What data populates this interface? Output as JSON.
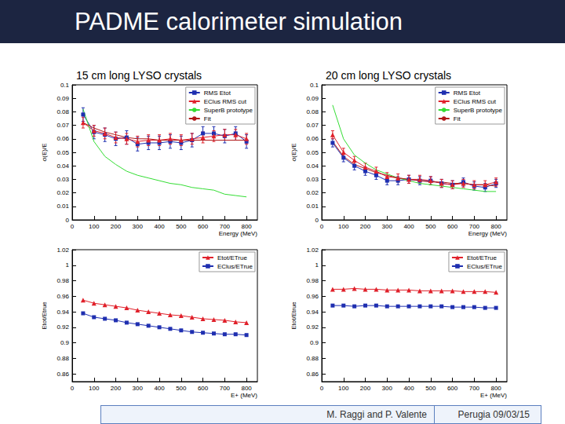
{
  "header": {
    "title": "PADME calorimeter simulation"
  },
  "footer": {
    "authors": "M. Raggi and P. Valente",
    "date": "Perugia 09/03/15"
  },
  "chart_data": [
    {
      "type": "line",
      "title": "15 cm long LYSO crystals",
      "x_label": "Energy (MeV)",
      "y_label": "σ(E)/E",
      "x": [
        50,
        100,
        150,
        200,
        250,
        300,
        350,
        400,
        450,
        500,
        550,
        600,
        650,
        700,
        750,
        800
      ],
      "xlim": [
        0,
        850
      ],
      "xticks": [
        0,
        100,
        200,
        300,
        400,
        500,
        600,
        700,
        800
      ],
      "ylim": [
        0,
        0.1
      ],
      "yticks": [
        0,
        0.01,
        0.02,
        0.03,
        0.04,
        0.05,
        0.06,
        0.07,
        0.08,
        0.09,
        0.1
      ],
      "grid": false,
      "legend": "top-right",
      "series": [
        {
          "name": "RMS Etot",
          "color": "#1f2fb0",
          "marker": "square",
          "line_style": "solid",
          "values": [
            0.078,
            0.065,
            0.063,
            0.06,
            0.061,
            0.056,
            0.057,
            0.057,
            0.058,
            0.057,
            0.059,
            0.064,
            0.064,
            0.062,
            0.064,
            0.058
          ],
          "errors": [
            0.005,
            0.005,
            0.005,
            0.005,
            0.005,
            0.005,
            0.005,
            0.005,
            0.005,
            0.005,
            0.005,
            0.005,
            0.005,
            0.005,
            0.005,
            0.005
          ]
        },
        {
          "name": "EClus RMS cut",
          "color": "#e0202a",
          "marker": "triangle",
          "line_style": "solid",
          "values": [
            0.072,
            0.066,
            0.064,
            0.061,
            0.06,
            0.058,
            0.059,
            0.059,
            0.06,
            0.059,
            0.06,
            0.061,
            0.062,
            0.063,
            0.063,
            0.06
          ],
          "errors": [
            0.004,
            0.004,
            0.004,
            0.004,
            0.004,
            0.004,
            0.004,
            0.004,
            0.004,
            0.004,
            0.004,
            0.004,
            0.004,
            0.004,
            0.004,
            0.004
          ]
        },
        {
          "name": "SuperB prototype",
          "color": "#33dd33",
          "marker": "none",
          "line_style": "solid",
          "values": [
            0.082,
            0.058,
            0.047,
            0.041,
            0.036,
            0.033,
            0.031,
            0.029,
            0.027,
            0.026,
            0.024,
            0.023,
            0.022,
            0.019,
            0.018,
            0.017
          ]
        },
        {
          "name": "Fit",
          "color": "#b01818",
          "marker": "none",
          "line_style": "solid",
          "values": [
            0.072,
            0.068,
            0.065,
            0.063,
            0.061,
            0.06,
            0.06,
            0.059,
            0.059,
            0.059,
            0.059,
            0.059,
            0.059,
            0.059,
            0.059,
            0.059
          ]
        }
      ]
    },
    {
      "type": "line",
      "title": "20 cm long LYSO crystals",
      "x_label": "Energy (MeV)",
      "y_label": "σ(E)/E",
      "x": [
        50,
        100,
        150,
        200,
        250,
        300,
        350,
        400,
        450,
        500,
        550,
        600,
        650,
        700,
        750,
        800
      ],
      "xlim": [
        0,
        850
      ],
      "xticks": [
        0,
        100,
        200,
        300,
        400,
        500,
        600,
        700,
        800
      ],
      "ylim": [
        0,
        0.1
      ],
      "yticks": [
        0,
        0.01,
        0.02,
        0.03,
        0.04,
        0.05,
        0.06,
        0.07,
        0.08,
        0.09,
        0.1
      ],
      "grid": false,
      "legend": "top-right",
      "series": [
        {
          "name": "RMS Etot",
          "color": "#1f2fb0",
          "marker": "square",
          "line_style": "solid",
          "values": [
            0.057,
            0.046,
            0.04,
            0.036,
            0.033,
            0.029,
            0.029,
            0.03,
            0.029,
            0.029,
            0.027,
            0.026,
            0.028,
            0.025,
            0.024,
            0.027
          ],
          "errors": [
            0.003,
            0.003,
            0.003,
            0.003,
            0.003,
            0.003,
            0.003,
            0.003,
            0.003,
            0.003,
            0.003,
            0.003,
            0.003,
            0.003,
            0.003,
            0.003
          ]
        },
        {
          "name": "EClus RMS cut",
          "color": "#e0202a",
          "marker": "triangle",
          "line_style": "solid",
          "values": [
            0.063,
            0.05,
            0.044,
            0.039,
            0.036,
            0.032,
            0.031,
            0.03,
            0.03,
            0.029,
            0.027,
            0.026,
            0.027,
            0.026,
            0.026,
            0.028
          ],
          "errors": [
            0.003,
            0.003,
            0.003,
            0.003,
            0.003,
            0.003,
            0.003,
            0.003,
            0.003,
            0.003,
            0.003,
            0.003,
            0.003,
            0.003,
            0.003,
            0.003
          ]
        },
        {
          "name": "SuperB prototype",
          "color": "#33dd33",
          "marker": "none",
          "line_style": "solid",
          "values": [
            0.085,
            0.06,
            0.048,
            0.042,
            0.037,
            0.034,
            0.031,
            0.029,
            0.027,
            0.026,
            0.025,
            0.024,
            0.023,
            0.022,
            0.021,
            0.021
          ]
        },
        {
          "name": "Fit",
          "color": "#b01818",
          "marker": "none",
          "line_style": "solid",
          "values": [
            0.058,
            0.047,
            0.041,
            0.038,
            0.035,
            0.033,
            0.031,
            0.03,
            0.029,
            0.028,
            0.028,
            0.027,
            0.027,
            0.026,
            0.026,
            0.025
          ]
        }
      ]
    },
    {
      "type": "line",
      "x_label": "E+ (MeV)",
      "y_label": "Etot/Etrue",
      "x": [
        50,
        100,
        150,
        200,
        250,
        300,
        350,
        400,
        450,
        500,
        550,
        600,
        650,
        700,
        750,
        800
      ],
      "xlim": [
        0,
        850
      ],
      "xticks": [
        0,
        100,
        200,
        300,
        400,
        500,
        600,
        700,
        800
      ],
      "ylim": [
        0.85,
        1.02
      ],
      "yticks": [
        0.86,
        0.88,
        0.9,
        0.92,
        0.94,
        0.96,
        0.98,
        1,
        1.02
      ],
      "grid": false,
      "legend": "top-right",
      "series": [
        {
          "name": "Etot/ETrue",
          "color": "#e0202a",
          "marker": "triangle",
          "line_style": "solid",
          "values": [
            0.955,
            0.951,
            0.949,
            0.947,
            0.945,
            0.942,
            0.94,
            0.938,
            0.936,
            0.935,
            0.933,
            0.931,
            0.93,
            0.929,
            0.927,
            0.926
          ]
        },
        {
          "name": "EClus/ETrue",
          "color": "#1f2fb0",
          "marker": "square",
          "line_style": "solid",
          "values": [
            0.938,
            0.933,
            0.931,
            0.929,
            0.926,
            0.924,
            0.922,
            0.92,
            0.918,
            0.916,
            0.914,
            0.913,
            0.912,
            0.911,
            0.911,
            0.91
          ]
        }
      ]
    },
    {
      "type": "line",
      "x_label": "E+ (MeV)",
      "y_label": "Etot/Etrue",
      "x": [
        50,
        100,
        150,
        200,
        250,
        300,
        350,
        400,
        450,
        500,
        550,
        600,
        650,
        700,
        750,
        800
      ],
      "xlim": [
        0,
        850
      ],
      "xticks": [
        0,
        100,
        200,
        300,
        400,
        500,
        600,
        700,
        800
      ],
      "ylim": [
        0.85,
        1.02
      ],
      "yticks": [
        0.86,
        0.88,
        0.9,
        0.92,
        0.94,
        0.96,
        0.98,
        1,
        1.02
      ],
      "grid": false,
      "legend": "top-right",
      "series": [
        {
          "name": "Etot/ETrue",
          "color": "#e0202a",
          "marker": "triangle",
          "line_style": "solid",
          "values": [
            0.969,
            0.969,
            0.97,
            0.969,
            0.969,
            0.968,
            0.968,
            0.968,
            0.967,
            0.967,
            0.967,
            0.967,
            0.966,
            0.966,
            0.966,
            0.965
          ]
        },
        {
          "name": "EClus/ETrue",
          "color": "#1f2fb0",
          "marker": "square",
          "line_style": "solid",
          "values": [
            0.948,
            0.948,
            0.947,
            0.948,
            0.948,
            0.947,
            0.947,
            0.947,
            0.947,
            0.947,
            0.947,
            0.946,
            0.946,
            0.946,
            0.945,
            0.945
          ]
        }
      ]
    }
  ]
}
